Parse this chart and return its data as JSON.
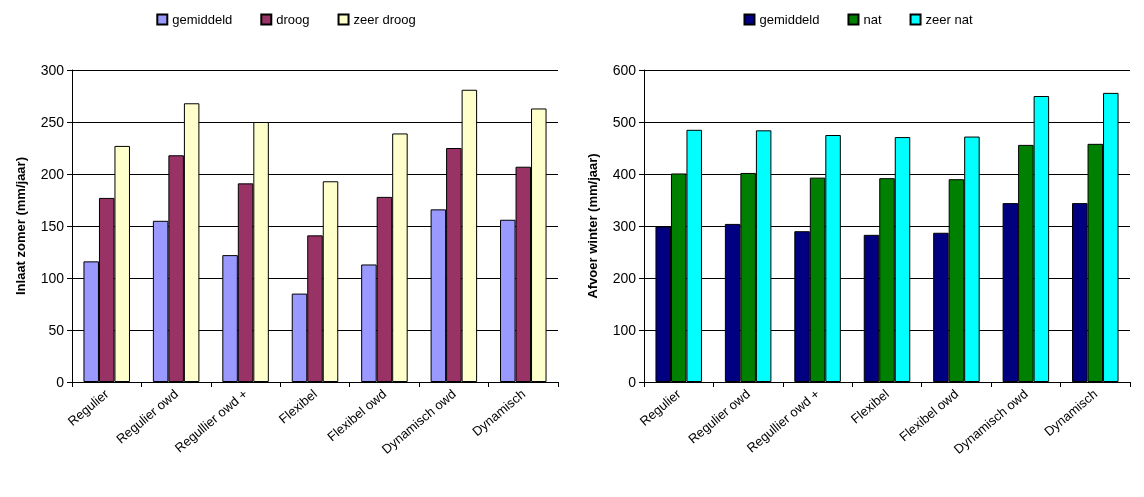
{
  "chart_data": [
    {
      "type": "bar",
      "ylabel": "Inlaat zomer (mm/jaar)",
      "categories": [
        "Regulier",
        "Regulier owd",
        "Regullier owd +",
        "Flexibel",
        "Flexibel owd",
        "Dynamisch owd",
        "Dynamisch"
      ],
      "ylim": [
        0,
        300
      ],
      "yticks": [
        0,
        50,
        100,
        150,
        200,
        250,
        300
      ],
      "grid": "y",
      "legend": "top",
      "series": [
        {
          "name": "gemiddeld",
          "color": "#9999ff",
          "values": [
            116,
            155,
            122,
            85,
            113,
            166,
            156
          ]
        },
        {
          "name": "droog",
          "color": "#993366",
          "values": [
            177,
            218,
            191,
            141,
            178,
            225,
            207
          ]
        },
        {
          "name": "zeer droog",
          "color": "#ffffcc",
          "values": [
            227,
            268,
            250,
            193,
            239,
            281,
            263
          ]
        }
      ]
    },
    {
      "type": "bar",
      "ylabel": "Afvoer winter (mm/jaar)",
      "categories": [
        "Regulier",
        "Regulier owd",
        "Regullier owd +",
        "Flexibel",
        "Flexibel owd",
        "Dynamisch owd",
        "Dynamisch"
      ],
      "ylim": [
        0,
        600
      ],
      "yticks": [
        0,
        100,
        200,
        300,
        400,
        500,
        600
      ],
      "grid": "y",
      "legend": "top",
      "series": [
        {
          "name": "gemiddeld",
          "color": "#000080",
          "values": [
            299,
            304,
            290,
            283,
            287,
            344,
            344
          ]
        },
        {
          "name": "nat",
          "color": "#008000",
          "values": [
            401,
            402,
            393,
            392,
            390,
            456,
            458
          ]
        },
        {
          "name": "zeer nat",
          "color": "#00ffff",
          "values": [
            485,
            484,
            475,
            471,
            472,
            550,
            556
          ]
        }
      ]
    }
  ]
}
